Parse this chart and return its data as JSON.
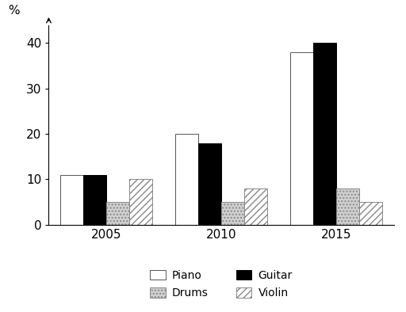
{
  "years": [
    "2005",
    "2010",
    "2015"
  ],
  "instruments": [
    "Piano",
    "Guitar",
    "Drums",
    "Violin"
  ],
  "bar_order": [
    "Piano",
    "Guitar",
    "Drums",
    "Violin"
  ],
  "values": {
    "Piano": [
      11,
      20,
      38
    ],
    "Guitar": [
      11,
      18,
      40
    ],
    "Drums": [
      5,
      5,
      8
    ],
    "Violin": [
      10,
      8,
      5
    ]
  },
  "colors": {
    "Piano": "white",
    "Guitar": "black",
    "Drums": "#d0d0d0",
    "Violin": "white"
  },
  "hatches": {
    "Piano": "",
    "Guitar": "",
    "Drums": "....",
    "Violin": "////"
  },
  "edgecolors": {
    "Piano": "#555555",
    "Guitar": "black",
    "Drums": "#888888",
    "Violin": "#888888"
  },
  "legend_order": [
    "Piano",
    "Drums",
    "Guitar",
    "Violin"
  ],
  "legend_labels": [
    "Piano",
    "Drums",
    "Guitar",
    "Violin"
  ],
  "ylim": [
    0,
    44
  ],
  "yticks": [
    0,
    10,
    20,
    30,
    40
  ],
  "ylabel": "%",
  "bar_width": 0.2,
  "background_color": "#ffffff"
}
